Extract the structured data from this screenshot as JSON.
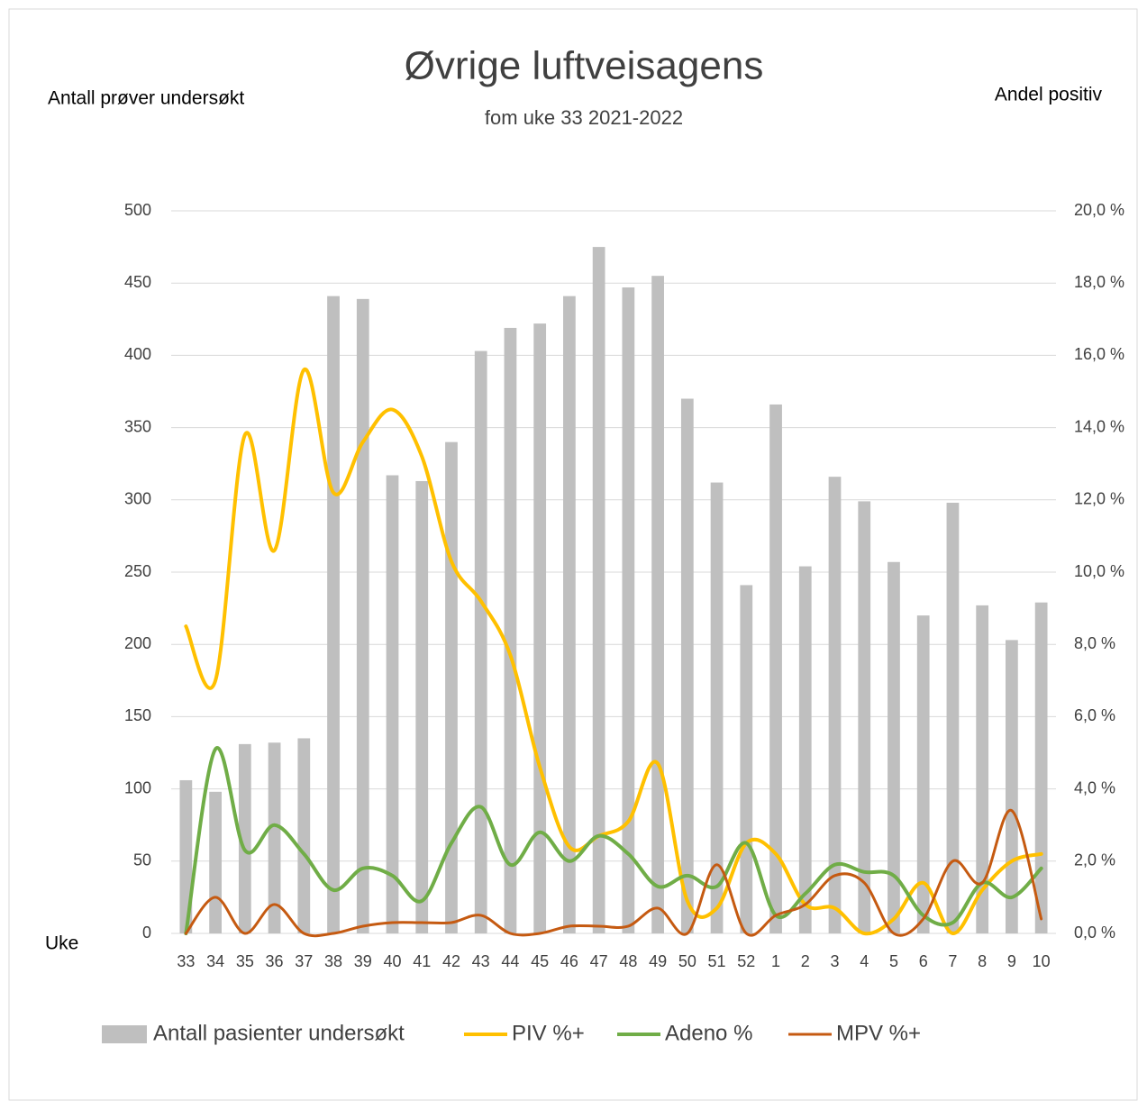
{
  "chart_data": {
    "type": "bar-line",
    "title": "Øvrige luftveisagens",
    "subtitle": "fom uke 33 2021-2022",
    "y_label": "Antall prøver undersøkt",
    "y2_label": "Andel positiv",
    "x_label": "Uke",
    "categories": [
      "33",
      "34",
      "35",
      "36",
      "37",
      "38",
      "39",
      "40",
      "41",
      "42",
      "43",
      "44",
      "45",
      "46",
      "47",
      "48",
      "49",
      "50",
      "51",
      "52",
      "1",
      "2",
      "3",
      "4",
      "5",
      "6",
      "7",
      "8",
      "9",
      "10"
    ],
    "series": [
      {
        "name": "Antall pasienter undersøkt",
        "type": "bar",
        "color": "#bfbfbf",
        "values": [
          106,
          98,
          131,
          132,
          135,
          441,
          439,
          317,
          313,
          340,
          403,
          419,
          422,
          441,
          475,
          447,
          455,
          370,
          312,
          241,
          366,
          254,
          316,
          299,
          257,
          220,
          298,
          227,
          203,
          229
        ]
      },
      {
        "name": "PIV %+",
        "type": "line",
        "axis": "y2",
        "color": "#ffc000",
        "values": [
          8.5,
          7.0,
          13.8,
          10.6,
          15.6,
          12.2,
          13.6,
          14.5,
          13.2,
          10.3,
          9.2,
          7.7,
          4.6,
          2.4,
          2.7,
          3.1,
          4.7,
          0.9,
          0.7,
          2.5,
          2.2,
          0.8,
          0.7,
          0.0,
          0.4,
          1.4,
          0.0,
          1.2,
          2.0,
          2.2
        ]
      },
      {
        "name": "Adeno %",
        "type": "line",
        "axis": "y2",
        "color": "#70ad47",
        "values": [
          0,
          5.1,
          2.3,
          3.0,
          2.2,
          1.2,
          1.8,
          1.6,
          0.9,
          2.5,
          3.5,
          1.9,
          2.8,
          2.0,
          2.7,
          2.2,
          1.3,
          1.6,
          1.3,
          2.5,
          0.5,
          1.1,
          1.9,
          1.7,
          1.6,
          0.5,
          0.3,
          1.4,
          1.0,
          1.8
        ]
      },
      {
        "name": "MPV %+",
        "type": "line",
        "axis": "y2",
        "color": "#c55a11",
        "values": [
          0,
          1.0,
          0,
          0.8,
          0,
          0,
          0.2,
          0.3,
          0.3,
          0.3,
          0.5,
          0,
          0,
          0.2,
          0.2,
          0.2,
          0.7,
          0,
          1.9,
          0,
          0.5,
          0.8,
          1.6,
          1.4,
          0,
          0.4,
          2.0,
          1.4,
          3.4,
          0.4
        ]
      }
    ],
    "ylim": [
      0,
      500
    ],
    "yticks": [
      0,
      50,
      100,
      150,
      200,
      250,
      300,
      350,
      400,
      450,
      500
    ],
    "y2lim": [
      0,
      20
    ],
    "y2ticks": [
      {
        "value": 0,
        "label": "0,0 %"
      },
      {
        "value": 2,
        "label": "2,0 %"
      },
      {
        "value": 4,
        "label": "4,0 %"
      },
      {
        "value": 6,
        "label": "6,0 %"
      },
      {
        "value": 8,
        "label": "8,0 %"
      },
      {
        "value": 10,
        "label": "10,0 %"
      },
      {
        "value": 12,
        "label": "12,0 %"
      },
      {
        "value": 14,
        "label": "14,0 %"
      },
      {
        "value": 16,
        "label": "16,0 %"
      },
      {
        "value": 18,
        "label": "18,0 %"
      },
      {
        "value": 20,
        "label": "20,0 %"
      }
    ],
    "grid": true,
    "legend": "bottom"
  }
}
